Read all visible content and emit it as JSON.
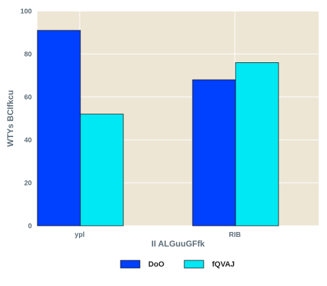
{
  "chart_data": {
    "type": "bar",
    "title": "",
    "xlabel": "II ALGuuGFfk",
    "ylabel": "WTYs BCIfkcu",
    "categories": [
      "ypl",
      "RIB"
    ],
    "series": [
      {
        "name": "DoO",
        "values": [
          91,
          68
        ],
        "color": "#0040ff"
      },
      {
        "name": "fQVAJ",
        "values": [
          52,
          76
        ],
        "color": "#00e8f4"
      }
    ],
    "ylim": [
      0,
      100
    ],
    "yticks": [
      "0",
      "20",
      "40",
      "60",
      "80",
      "100"
    ],
    "grid": true,
    "legend_position": "bottom-center",
    "plot_background": "#ede6d4",
    "grid_color": "#ffffff"
  }
}
